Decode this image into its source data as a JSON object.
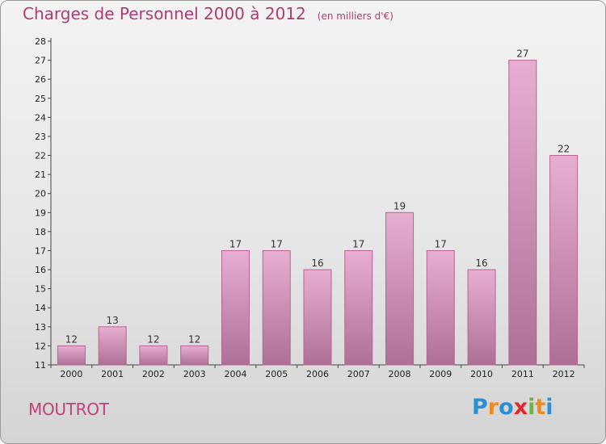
{
  "header": {
    "title": "Charges de Personnel 2000 à 2012",
    "unit": "(en milliers d'€)"
  },
  "footer": {
    "town": "MOUTROT",
    "logo_letters": [
      "P",
      "r",
      "o",
      "x",
      "i",
      "t",
      "i"
    ],
    "logo_colors": [
      "#2b8fd6",
      "#f08a1c",
      "#2b8fd6",
      "#e6262a",
      "#6db33f",
      "#f08a1c",
      "#2b8fd6"
    ]
  },
  "colors": {
    "bar_light": "#e8aed2",
    "bar_dark": "#ad6f96",
    "bar_edge": "#b66592",
    "title": "#b13a73"
  },
  "chart_data": {
    "type": "bar",
    "categories": [
      "2000",
      "2001",
      "2002",
      "2003",
      "2004",
      "2005",
      "2006",
      "2007",
      "2008",
      "2009",
      "2010",
      "2011",
      "2012"
    ],
    "values": [
      12,
      13,
      12,
      12,
      17,
      17,
      16,
      17,
      19,
      17,
      16,
      27,
      22
    ],
    "data_labels": [
      "12",
      "13",
      "12",
      "12",
      "17",
      "17",
      "16",
      "17",
      "19",
      "17",
      "16",
      "27",
      "22"
    ],
    "ylim": [
      11,
      28
    ],
    "yticks": [
      11,
      12,
      13,
      14,
      15,
      16,
      17,
      18,
      19,
      20,
      21,
      22,
      23,
      24,
      25,
      26,
      27,
      28
    ],
    "ytick_labels": [
      "11",
      "12",
      "13",
      "14",
      "15",
      "16",
      "17",
      "18",
      "19",
      "20",
      "21",
      "22",
      "23",
      "24",
      "25",
      "26",
      "27",
      "28"
    ],
    "grid": false,
    "legend": "none"
  }
}
